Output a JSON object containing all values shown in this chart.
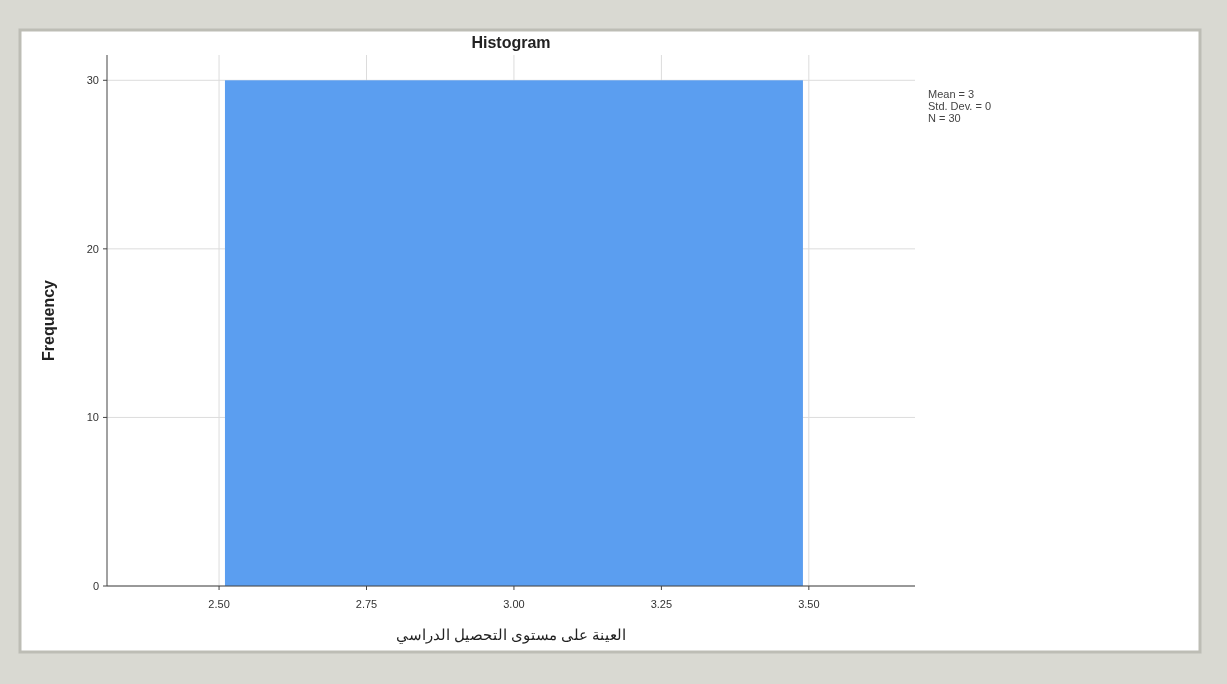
{
  "chart_data": {
    "type": "histogram",
    "title": "Histogram",
    "xlabel": "العينة على مستوى التحصيل الدراسي",
    "ylabel": "Frequency",
    "bins": [
      2.51,
      3.49
    ],
    "values": [
      30
    ],
    "color": "#5b9ef0",
    "xlim": [
      2.31,
      3.68
    ],
    "xticks": [
      {
        "value": 2.5,
        "label": "2.50"
      },
      {
        "value": 2.75,
        "label": "2.75"
      },
      {
        "value": 3.0,
        "label": "3.00"
      },
      {
        "value": 3.25,
        "label": "3.25"
      },
      {
        "value": 3.5,
        "label": "3.50"
      }
    ],
    "ylim": [
      0,
      31.5
    ],
    "yticks": [
      0,
      10,
      20,
      30
    ],
    "grid": true,
    "annotations": [
      "Mean = 3",
      "Std. Dev. = 0",
      "N = 30"
    ]
  }
}
